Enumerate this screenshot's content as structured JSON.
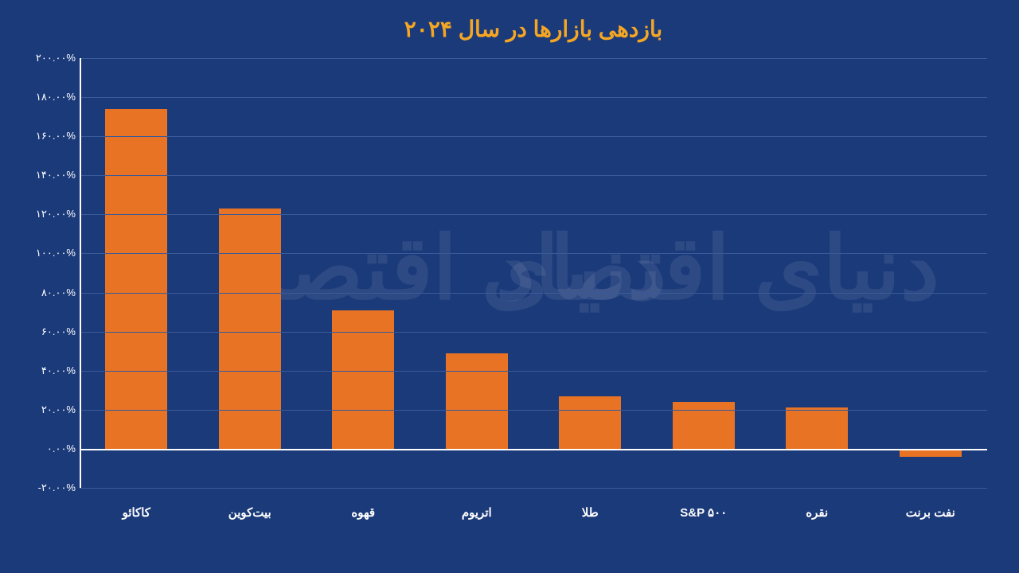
{
  "chart": {
    "type": "bar",
    "title": "بازدهی بازارها در سال ۲۰۲۴",
    "title_fontsize": 28,
    "title_color": "#f5a623",
    "background_color": "#1b3a7a",
    "bar_color": "#e87324",
    "text_color": "#ffffff",
    "grid_color": "#3a5a9a",
    "axis_color": "#ffffff",
    "bar_width": 0.55,
    "ylim": [
      -20,
      200
    ],
    "ytick_step": 20,
    "y_ticks": [
      {
        "value": 200,
        "label": "۲۰۰.۰۰%"
      },
      {
        "value": 180,
        "label": "۱۸۰.۰۰%"
      },
      {
        "value": 160,
        "label": "۱۶۰.۰۰%"
      },
      {
        "value": 140,
        "label": "۱۴۰.۰۰%"
      },
      {
        "value": 120,
        "label": "۱۲۰.۰۰%"
      },
      {
        "value": 100,
        "label": "۱۰۰.۰۰%"
      },
      {
        "value": 80,
        "label": "۸۰.۰۰%"
      },
      {
        "value": 60,
        "label": "۶۰.۰۰%"
      },
      {
        "value": 40,
        "label": "۴۰.۰۰%"
      },
      {
        "value": 20,
        "label": "۲۰.۰۰%"
      },
      {
        "value": 0,
        "label": "۰.۰۰%"
      },
      {
        "value": -20,
        "label": "-۲۰.۰۰%"
      }
    ],
    "categories": [
      "کاکائو",
      "بیت‌کوین",
      "قهوه",
      "اتریوم",
      "طلا",
      "S&P ۵۰۰",
      "نقره",
      "نفت برنت"
    ],
    "values": [
      174,
      123,
      71,
      49,
      27,
      24,
      21,
      -4
    ],
    "label_fontsize": 15,
    "tick_fontsize": 13,
    "watermark_text": "دنیای اقتصاد",
    "watermark_color": "#ffffff"
  }
}
